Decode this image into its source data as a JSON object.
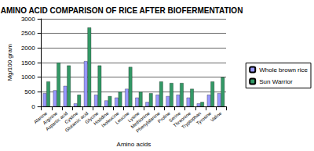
{
  "chart_data": {
    "type": "bar",
    "title": "AMINO ACID COMPARISON OF RICE AFTER BIOFERMENTATION",
    "x_label": "Amino acids",
    "y_label": "Mg/100 gram",
    "categories": [
      "Alanine",
      "Arginine",
      "Aspartic acid",
      "Cystine",
      "Glutamic acid",
      "Glycine",
      "Histidine",
      "Isoleucine",
      "Leucine",
      "Lysine",
      "Methionine",
      "Phenylalanine",
      "Proline",
      "Serine",
      "Threonine",
      "Tryptophan",
      "Tyrosine",
      "Valine"
    ],
    "series": [
      {
        "name": "Whole brown rice",
        "color": "#9999ff",
        "values": [
          450,
          550,
          700,
          100,
          1550,
          400,
          200,
          300,
          600,
          300,
          150,
          400,
          350,
          400,
          300,
          100,
          400,
          450
        ]
      },
      {
        "name": "Sun Warrior",
        "color": "#339966",
        "values": [
          850,
          1500,
          1400,
          400,
          2700,
          1400,
          350,
          500,
          1350,
          500,
          450,
          850,
          800,
          800,
          600,
          150,
          850,
          1000
        ]
      }
    ],
    "ylim": [
      0,
      3000
    ],
    "yticks": [
      0,
      500,
      1000,
      1500,
      2000,
      2500,
      3000
    ],
    "grid": true,
    "legend": "right"
  }
}
